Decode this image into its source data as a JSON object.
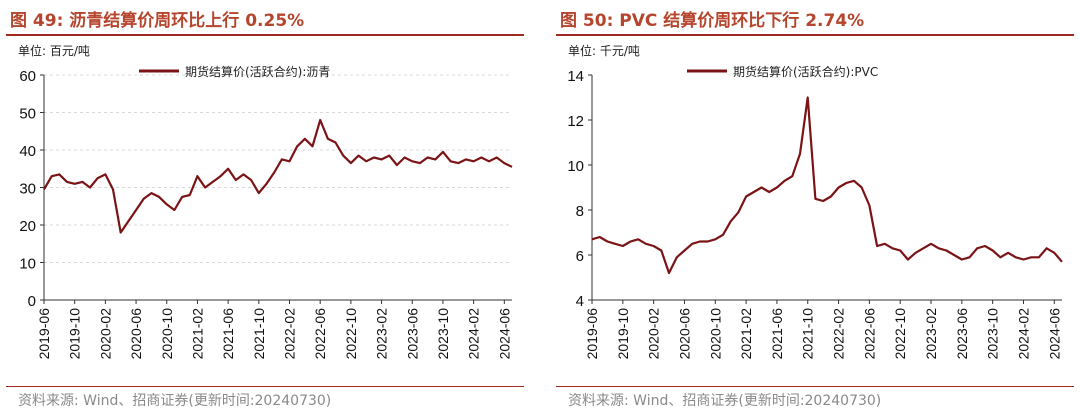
{
  "left": {
    "title": "图 49:  沥青结算价周环比上行 0.25%",
    "unit": "单位:  百元/吨",
    "source": "资料来源:  Wind、招商证券(更新时间:20240730)"
  },
  "right": {
    "title": "图 50:  PVC 结算价周环比下行 2.74%",
    "unit": "单位:  千元/吨",
    "source": "资料来源:  Wind、招商证券(更新时间:20240730)"
  },
  "colors": {
    "line": "#7a1416",
    "title": "#b5452d",
    "rule": "#9c2b20",
    "grid": "#d9d9d9"
  },
  "chart_data": [
    {
      "type": "line",
      "title": "",
      "xlabel": "",
      "ylabel": "",
      "ylim": [
        0,
        60
      ],
      "yticks": [
        "0",
        "10",
        "20",
        "30",
        "40",
        "50",
        "60"
      ],
      "xticks": [
        "2019-06",
        "2019-10",
        "2020-02",
        "2020-06",
        "2020-10",
        "2021-02",
        "2021-06",
        "2021-10",
        "2022-02",
        "2022-06",
        "2022-10",
        "2023-02",
        "2023-06",
        "2023-10",
        "2024-02",
        "2024-06"
      ],
      "grid": "horizontal",
      "legend": "top-center",
      "series": [
        {
          "name": "期货结算价(活跃合约):沥青",
          "x": [
            "2019-06",
            "2019-07",
            "2019-08",
            "2019-09",
            "2019-10",
            "2019-11",
            "2019-12",
            "2020-01",
            "2020-02",
            "2020-03",
            "2020-04",
            "2020-05",
            "2020-06",
            "2020-07",
            "2020-08",
            "2020-09",
            "2020-10",
            "2020-11",
            "2020-12",
            "2021-01",
            "2021-02",
            "2021-03",
            "2021-04",
            "2021-05",
            "2021-06",
            "2021-07",
            "2021-08",
            "2021-09",
            "2021-10",
            "2021-11",
            "2021-12",
            "2022-01",
            "2022-02",
            "2022-03",
            "2022-04",
            "2022-05",
            "2022-06",
            "2022-07",
            "2022-08",
            "2022-09",
            "2022-10",
            "2022-11",
            "2022-12",
            "2023-01",
            "2023-02",
            "2023-03",
            "2023-04",
            "2023-05",
            "2023-06",
            "2023-07",
            "2023-08",
            "2023-09",
            "2023-10",
            "2023-11",
            "2023-12",
            "2024-01",
            "2024-02",
            "2024-03",
            "2024-04",
            "2024-05",
            "2024-06",
            "2024-07"
          ],
          "values": [
            29.5,
            33,
            33.5,
            31.5,
            31,
            31.5,
            30,
            32.5,
            33.5,
            29.5,
            18,
            21,
            24,
            27,
            28.5,
            27.5,
            25.5,
            24,
            27.5,
            28,
            33,
            30,
            31.5,
            33,
            35,
            32,
            33.5,
            32,
            28.5,
            31,
            34,
            37.5,
            37,
            41,
            43,
            41,
            48,
            43,
            42,
            38.5,
            36.5,
            38.5,
            37,
            38,
            37.5,
            38.5,
            36,
            38,
            37,
            36.5,
            38,
            37.5,
            39.5,
            37,
            36.5,
            37.5,
            37,
            38,
            37,
            38,
            36.5,
            35.5
          ]
        }
      ]
    },
    {
      "type": "line",
      "title": "",
      "xlabel": "",
      "ylabel": "",
      "ylim": [
        4,
        14
      ],
      "yticks": [
        "4",
        "6",
        "8",
        "10",
        "12",
        "14"
      ],
      "xticks": [
        "2019-06",
        "2019-10",
        "2020-02",
        "2020-06",
        "2020-10",
        "2021-02",
        "2021-06",
        "2021-10",
        "2022-02",
        "2022-06",
        "2022-10",
        "2023-02",
        "2023-06",
        "2023-10",
        "2024-02",
        "2024-06"
      ],
      "grid": "none",
      "legend": "top-center",
      "series": [
        {
          "name": "期货结算价(活跃合约):PVC",
          "x": [
            "2019-06",
            "2019-07",
            "2019-08",
            "2019-09",
            "2019-10",
            "2019-11",
            "2019-12",
            "2020-01",
            "2020-02",
            "2020-03",
            "2020-04",
            "2020-05",
            "2020-06",
            "2020-07",
            "2020-08",
            "2020-09",
            "2020-10",
            "2020-11",
            "2020-12",
            "2021-01",
            "2021-02",
            "2021-03",
            "2021-04",
            "2021-05",
            "2021-06",
            "2021-07",
            "2021-08",
            "2021-09",
            "2021-10",
            "2021-11",
            "2021-12",
            "2022-01",
            "2022-02",
            "2022-03",
            "2022-04",
            "2022-05",
            "2022-06",
            "2022-07",
            "2022-08",
            "2022-09",
            "2022-10",
            "2022-11",
            "2022-12",
            "2023-01",
            "2023-02",
            "2023-03",
            "2023-04",
            "2023-05",
            "2023-06",
            "2023-07",
            "2023-08",
            "2023-09",
            "2023-10",
            "2023-11",
            "2023-12",
            "2024-01",
            "2024-02",
            "2024-03",
            "2024-04",
            "2024-05",
            "2024-06",
            "2024-07"
          ],
          "values": [
            6.7,
            6.8,
            6.6,
            6.5,
            6.4,
            6.6,
            6.7,
            6.5,
            6.4,
            6.2,
            5.2,
            5.9,
            6.2,
            6.5,
            6.6,
            6.6,
            6.7,
            6.9,
            7.5,
            7.9,
            8.6,
            8.8,
            9.0,
            8.8,
            9.0,
            9.3,
            9.5,
            10.5,
            13.0,
            8.5,
            8.4,
            8.6,
            9.0,
            9.2,
            9.3,
            9.0,
            8.2,
            6.4,
            6.5,
            6.3,
            6.2,
            5.8,
            6.1,
            6.3,
            6.5,
            6.3,
            6.2,
            6.0,
            5.8,
            5.9,
            6.3,
            6.4,
            6.2,
            5.9,
            6.1,
            5.9,
            5.8,
            5.9,
            5.9,
            6.3,
            6.1,
            5.7
          ]
        }
      ]
    }
  ]
}
